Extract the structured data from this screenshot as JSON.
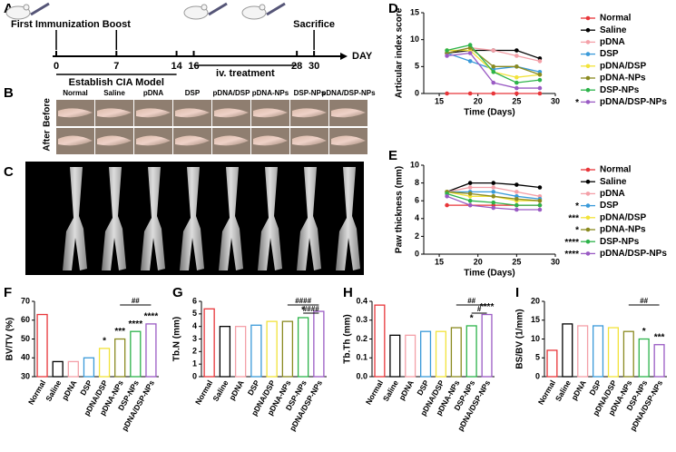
{
  "panels": [
    "A",
    "B",
    "C",
    "D",
    "E",
    "F",
    "G",
    "H",
    "I"
  ],
  "timeline": {
    "days": [
      0,
      7,
      14,
      16,
      28,
      30
    ],
    "unit": "DAY",
    "events": [
      {
        "day": 0,
        "label": "First Immunization"
      },
      {
        "day": 7,
        "label": "Boost"
      },
      {
        "day": 30,
        "label": "Sacrifice"
      }
    ],
    "phases": [
      {
        "from": 0,
        "to": 14,
        "label": "Establish CIA Model"
      },
      {
        "from": 16,
        "to": 28,
        "label": "iv. treatment"
      }
    ]
  },
  "photos": {
    "groups": [
      "Normal",
      "Saline",
      "pDNA",
      "DSP",
      "pDNA/DSP",
      "pDNA-NPs",
      "DSP-NPs",
      "pDNA/DSP-NPs"
    ],
    "rows": [
      "Before",
      "After"
    ]
  },
  "chart_data": [
    {
      "type": "line",
      "xlabel": "Time (Days)",
      "ylabel": "Articular index score",
      "x": [
        16,
        19,
        22,
        25,
        28
      ],
      "xlim": [
        13,
        30
      ],
      "xticks": [
        15,
        20,
        25,
        30
      ],
      "ylim": [
        0,
        15
      ],
      "yticks": [
        0,
        5,
        10,
        15
      ],
      "series": [
        {
          "name": "Normal",
          "color": "#e8363a",
          "values": [
            0,
            0,
            0,
            0,
            0
          ]
        },
        {
          "name": "Saline",
          "color": "#000000",
          "values": [
            7.5,
            8,
            8,
            8,
            6.5
          ]
        },
        {
          "name": "pDNA",
          "color": "#f4a0a8",
          "values": [
            7.5,
            8.5,
            8,
            7,
            6
          ]
        },
        {
          "name": "DSP",
          "color": "#3a9ad9",
          "values": [
            7.5,
            6,
            4.5,
            5,
            4
          ]
        },
        {
          "name": "pDNA/DSP",
          "color": "#f2e33a",
          "values": [
            8,
            8,
            4,
            3,
            3.5
          ]
        },
        {
          "name": "pDNA-NPs",
          "color": "#8a8a20",
          "values": [
            7.5,
            8.5,
            5,
            5,
            3.5
          ]
        },
        {
          "name": "DSP-NPs",
          "color": "#2db34a",
          "values": [
            8,
            9,
            4,
            2,
            2.5
          ]
        },
        {
          "name": "pDNA/DSP-NPs",
          "color": "#9a5bc4",
          "values": [
            7,
            7.5,
            2,
            1,
            1
          ]
        }
      ],
      "annotations": [
        {
          "series": "pDNA/DSP-NPs",
          "text": "*"
        }
      ]
    },
    {
      "type": "line",
      "xlabel": "Time (Days)",
      "ylabel": "Paw thickness (mm)",
      "x": [
        16,
        19,
        22,
        25,
        28
      ],
      "xlim": [
        13,
        30
      ],
      "xticks": [
        15,
        20,
        25,
        30
      ],
      "ylim": [
        0,
        10
      ],
      "yticks": [
        0,
        2,
        4,
        6,
        8,
        10
      ],
      "series": [
        {
          "name": "Normal",
          "color": "#e8363a",
          "values": [
            5.5,
            5.5,
            5.5,
            5.5,
            5.5
          ]
        },
        {
          "name": "Saline",
          "color": "#000000",
          "values": [
            7,
            8,
            8,
            7.8,
            7.5
          ]
        },
        {
          "name": "pDNA",
          "color": "#f4a0a8",
          "values": [
            7,
            7.5,
            7.5,
            7,
            6.5
          ]
        },
        {
          "name": "DSP",
          "color": "#3a9ad9",
          "values": [
            7,
            7,
            7,
            6.5,
            6.2
          ]
        },
        {
          "name": "pDNA/DSP",
          "color": "#f2e33a",
          "values": [
            7,
            6.5,
            6.5,
            6,
            6
          ]
        },
        {
          "name": "pDNA-NPs",
          "color": "#8a8a20",
          "values": [
            7,
            6.8,
            6.5,
            6.2,
            6
          ]
        },
        {
          "name": "DSP-NPs",
          "color": "#2db34a",
          "values": [
            6.8,
            6,
            5.8,
            5.5,
            5.5
          ]
        },
        {
          "name": "pDNA/DSP-NPs",
          "color": "#9a5bc4",
          "values": [
            6.5,
            5.5,
            5.2,
            5,
            5
          ]
        }
      ],
      "annotations": [
        {
          "series": "DSP",
          "text": "*"
        },
        {
          "series": "pDNA/DSP",
          "text": "***"
        },
        {
          "series": "pDNA-NPs",
          "text": "*"
        },
        {
          "series": "DSP-NPs",
          "text": "****"
        },
        {
          "series": "pDNA/DSP-NPs",
          "text": "****"
        }
      ]
    },
    {
      "type": "bar",
      "ylabel": "BV/TV (%)",
      "categories": [
        "Normal",
        "Saline",
        "pDNA",
        "DSP",
        "pDNA/DSP",
        "pDNA-NPs",
        "DSP-NPs",
        "pDNA/DSP-NPs"
      ],
      "values": [
        63,
        38,
        38,
        40,
        45,
        50,
        54,
        58
      ],
      "colors": [
        "#e8363a",
        "#000000",
        "#f4a0a8",
        "#3a9ad9",
        "#f2e33a",
        "#8a8a20",
        "#2db34a",
        "#9a5bc4"
      ],
      "ylim": [
        30,
        70
      ],
      "yticks": [
        30,
        40,
        50,
        60,
        70
      ],
      "annotations": [
        {
          "category": "pDNA/DSP",
          "text": "*"
        },
        {
          "category": "pDNA-NPs",
          "text": "***"
        },
        {
          "category": "DSP-NPs",
          "text": "****"
        },
        {
          "category": "pDNA/DSP-NPs",
          "text": "****"
        }
      ],
      "brackets": [
        {
          "from": "pDNA-NPs",
          "to": "pDNA/DSP-NPs",
          "text": "##"
        }
      ]
    },
    {
      "type": "bar",
      "ylabel": "Tb.N (mm)",
      "categories": [
        "Normal",
        "Saline",
        "pDNA",
        "DSP",
        "pDNA/DSP",
        "pDNA-NPs",
        "DSP-NPs",
        "pDNA/DSP-NPs"
      ],
      "values": [
        5.4,
        4.0,
        4.0,
        4.1,
        4.4,
        4.4,
        4.7,
        5.2
      ],
      "colors": [
        "#e8363a",
        "#000000",
        "#f4a0a8",
        "#3a9ad9",
        "#f2e33a",
        "#8a8a20",
        "#2db34a",
        "#9a5bc4"
      ],
      "ylim": [
        0,
        6
      ],
      "yticks": [
        0,
        1,
        2,
        3,
        4,
        5,
        6
      ],
      "annotations": [
        {
          "category": "DSP-NPs",
          "text": "*"
        }
      ],
      "brackets": [
        {
          "from": "pDNA-NPs",
          "to": "pDNA/DSP-NPs",
          "text": "####"
        },
        {
          "from": "DSP-NPs",
          "to": "pDNA/DSP-NPs",
          "text": "####"
        }
      ]
    },
    {
      "type": "bar",
      "ylabel": "Tb.Th (mm)",
      "categories": [
        "Normal",
        "Saline",
        "pDNA",
        "DSP",
        "pDNA/DSP",
        "pDNA-NPs",
        "DSP-NPs",
        "pDNA/DSP-NPs"
      ],
      "values": [
        0.38,
        0.22,
        0.22,
        0.24,
        0.24,
        0.26,
        0.27,
        0.33
      ],
      "colors": [
        "#e8363a",
        "#000000",
        "#f4a0a8",
        "#3a9ad9",
        "#f2e33a",
        "#8a8a20",
        "#2db34a",
        "#9a5bc4"
      ],
      "ylim": [
        0,
        0.4
      ],
      "yticks": [
        {
          "value": 0,
          "label": "0.0"
        },
        0.1,
        0.2,
        0.3,
        0.4
      ],
      "annotations": [
        {
          "category": "DSP-NPs",
          "text": "*"
        },
        {
          "category": "pDNA/DSP-NPs",
          "text": "****"
        }
      ],
      "brackets": [
        {
          "from": "pDNA-NPs",
          "to": "pDNA/DSP-NPs",
          "text": "##"
        },
        {
          "from": "DSP-NPs",
          "to": "pDNA/DSP-NPs",
          "text": "#"
        }
      ]
    },
    {
      "type": "bar",
      "ylabel": "BS/BV (1/mm)",
      "categories": [
        "Normal",
        "Saline",
        "pDNA",
        "DSP",
        "pDNA/DSP",
        "pDNA-NPs",
        "DSP-NPs",
        "pDNA/DSP-NPs"
      ],
      "values": [
        7,
        14,
        13.5,
        13.5,
        13,
        12,
        10,
        8.5
      ],
      "colors": [
        "#e8363a",
        "#000000",
        "#f4a0a8",
        "#3a9ad9",
        "#f2e33a",
        "#8a8a20",
        "#2db34a",
        "#9a5bc4"
      ],
      "ylim": [
        0,
        20
      ],
      "yticks": [
        0,
        5,
        10,
        15,
        20
      ],
      "annotations": [
        {
          "category": "DSP-NPs",
          "text": "*"
        },
        {
          "category": "pDNA/DSP-NPs",
          "text": "***"
        }
      ],
      "brackets": [
        {
          "from": "pDNA-NPs",
          "to": "pDNA/DSP-NPs",
          "text": "##"
        }
      ]
    }
  ]
}
